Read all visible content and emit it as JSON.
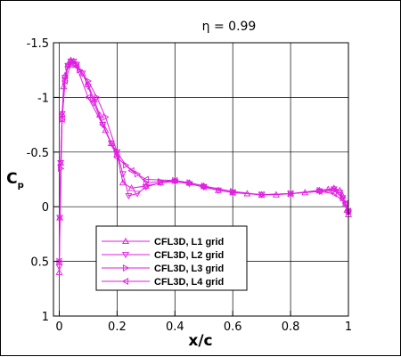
{
  "chart_data": {
    "type": "line",
    "title": "η = 0.99",
    "xlabel": "x/c",
    "ylabel": "Cp",
    "ylabel_main": "C",
    "ylabel_sub": "p",
    "xlim": [
      -0.02,
      1.0
    ],
    "ylim": [
      1.0,
      -1.5
    ],
    "y_inverted": true,
    "grid": true,
    "line_color": "#e01ee0",
    "x_ticks": [
      {
        "value": 0,
        "label": "0"
      },
      {
        "value": 0.2,
        "label": "0.2"
      },
      {
        "value": 0.4,
        "label": "0.4"
      },
      {
        "value": 0.6,
        "label": "0.6"
      },
      {
        "value": 0.8,
        "label": "0.8"
      },
      {
        "value": 1.0,
        "label": "1"
      }
    ],
    "y_ticks": [
      {
        "value": -1.5,
        "label": "-1.5"
      },
      {
        "value": -1.0,
        "label": "-1"
      },
      {
        "value": -0.5,
        "label": "-0.5"
      },
      {
        "value": 0,
        "label": "0"
      },
      {
        "value": 0.5,
        "label": "0.5"
      },
      {
        "value": 1.0,
        "label": "1"
      }
    ],
    "legend_position": "lower-left",
    "series": [
      {
        "name": "CFL3D, L1 grid",
        "marker": "triangle-up",
        "x": [
          0.0,
          0.002,
          0.005,
          0.01,
          0.015,
          0.02,
          0.03,
          0.04,
          0.05,
          0.06,
          0.08,
          0.1,
          0.12,
          0.14,
          0.16,
          0.18,
          0.2,
          0.22,
          0.25,
          0.3,
          0.35,
          0.4,
          0.45,
          0.5,
          0.55,
          0.6,
          0.65,
          0.7,
          0.75,
          0.8,
          0.85,
          0.9,
          0.93,
          0.95,
          0.97,
          0.98,
          0.99,
          0.995,
          1.0
        ],
        "y": [
          0.6,
          0.1,
          -0.4,
          -0.85,
          -1.1,
          -1.2,
          -1.3,
          -1.34,
          -1.33,
          -1.3,
          -1.22,
          -1.12,
          -0.98,
          -0.84,
          -0.7,
          -0.58,
          -0.48,
          -0.22,
          -0.17,
          -0.19,
          -0.22,
          -0.24,
          -0.22,
          -0.19,
          -0.15,
          -0.13,
          -0.12,
          -0.11,
          -0.11,
          -0.12,
          -0.13,
          -0.15,
          -0.16,
          -0.17,
          -0.15,
          -0.1,
          -0.03,
          0.03,
          0.07
        ]
      },
      {
        "name": "CFL3D, L2 grid",
        "marker": "triangle-down",
        "x": [
          0.0,
          0.002,
          0.005,
          0.01,
          0.02,
          0.03,
          0.04,
          0.05,
          0.06,
          0.08,
          0.1,
          0.12,
          0.15,
          0.18,
          0.2,
          0.22,
          0.24,
          0.27,
          0.3,
          0.35,
          0.4,
          0.45,
          0.5,
          0.55,
          0.6,
          0.7,
          0.8,
          0.9,
          0.95,
          0.97,
          0.98,
          0.99,
          1.0
        ],
        "y": [
          0.55,
          0.1,
          -0.4,
          -0.85,
          -1.18,
          -1.29,
          -1.33,
          -1.33,
          -1.3,
          -1.22,
          -1.1,
          -0.95,
          -0.75,
          -0.58,
          -0.5,
          -0.3,
          -0.1,
          -0.12,
          -0.18,
          -0.22,
          -0.23,
          -0.21,
          -0.18,
          -0.15,
          -0.13,
          -0.11,
          -0.12,
          -0.14,
          -0.16,
          -0.13,
          -0.08,
          -0.02,
          0.05
        ]
      },
      {
        "name": "CFL3D, L3 grid",
        "marker": "triangle-right",
        "x": [
          0.0,
          0.005,
          0.01,
          0.02,
          0.03,
          0.04,
          0.05,
          0.07,
          0.1,
          0.13,
          0.16,
          0.2,
          0.23,
          0.27,
          0.3,
          0.35,
          0.4,
          0.45,
          0.5,
          0.6,
          0.7,
          0.8,
          0.9,
          0.95,
          0.98,
          1.0
        ],
        "y": [
          0.5,
          -0.35,
          -0.8,
          -1.15,
          -1.28,
          -1.32,
          -1.32,
          -1.25,
          -1.15,
          -1.0,
          -0.82,
          -0.5,
          -0.38,
          -0.3,
          -0.22,
          -0.23,
          -0.24,
          -0.22,
          -0.19,
          -0.14,
          -0.11,
          -0.12,
          -0.15,
          -0.15,
          -0.08,
          0.04
        ]
      },
      {
        "name": "CFL3D, L4 grid",
        "marker": "triangle-left",
        "x": [
          0.0,
          0.01,
          0.02,
          0.04,
          0.06,
          0.1,
          0.15,
          0.2,
          0.25,
          0.3,
          0.4,
          0.5,
          0.6,
          0.7,
          0.8,
          0.9,
          0.95,
          0.99,
          1.0
        ],
        "y": [
          0.5,
          -0.8,
          -1.15,
          -1.3,
          -1.28,
          -1.0,
          -0.75,
          -0.45,
          -0.33,
          -0.25,
          -0.24,
          -0.18,
          -0.13,
          -0.11,
          -0.12,
          -0.14,
          -0.12,
          -0.03,
          0.04
        ]
      }
    ]
  }
}
